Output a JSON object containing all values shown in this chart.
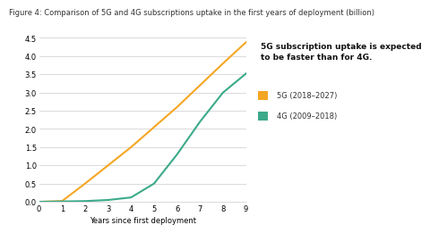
{
  "title": "Figure 4: Comparison of 5G and 4G subscriptions uptake in the first years of deployment (billion)",
  "xlabel": "Years since first deployment",
  "xlim": [
    0,
    9
  ],
  "ylim": [
    0,
    4.5
  ],
  "yticks": [
    0,
    0.5,
    1.0,
    1.5,
    2.0,
    2.5,
    3.0,
    3.5,
    4.0,
    4.5
  ],
  "xticks": [
    0,
    1,
    2,
    3,
    4,
    5,
    6,
    7,
    8,
    9
  ],
  "5g_color": "#F5A623",
  "4g_color": "#3BAA8A",
  "5g_label": "5G (2018–2027)",
  "4g_label": "4G (2009–2018)",
  "5g_x": [
    0,
    1,
    2,
    3,
    4,
    5,
    6,
    7,
    8,
    9
  ],
  "5g_y": [
    0.0,
    0.02,
    0.5,
    1.0,
    1.5,
    2.05,
    2.6,
    3.2,
    3.8,
    4.38
  ],
  "4g_x": [
    0,
    1,
    2,
    3,
    4,
    5,
    6,
    7,
    8,
    9
  ],
  "4g_y": [
    0.0,
    0.01,
    0.02,
    0.05,
    0.12,
    0.5,
    1.3,
    2.2,
    3.0,
    3.52
  ],
  "annotation_text": "5G subscription uptake is expected\nto be faster than for 4G.",
  "bg_color": "#FFFFFF",
  "annotation_bg": "#EBEBEB",
  "grid_color": "#CCCCCC",
  "title_fontsize": 6.0,
  "axis_fontsize": 6.0,
  "legend_fontsize": 6.0,
  "annotation_fontsize": 6.5
}
